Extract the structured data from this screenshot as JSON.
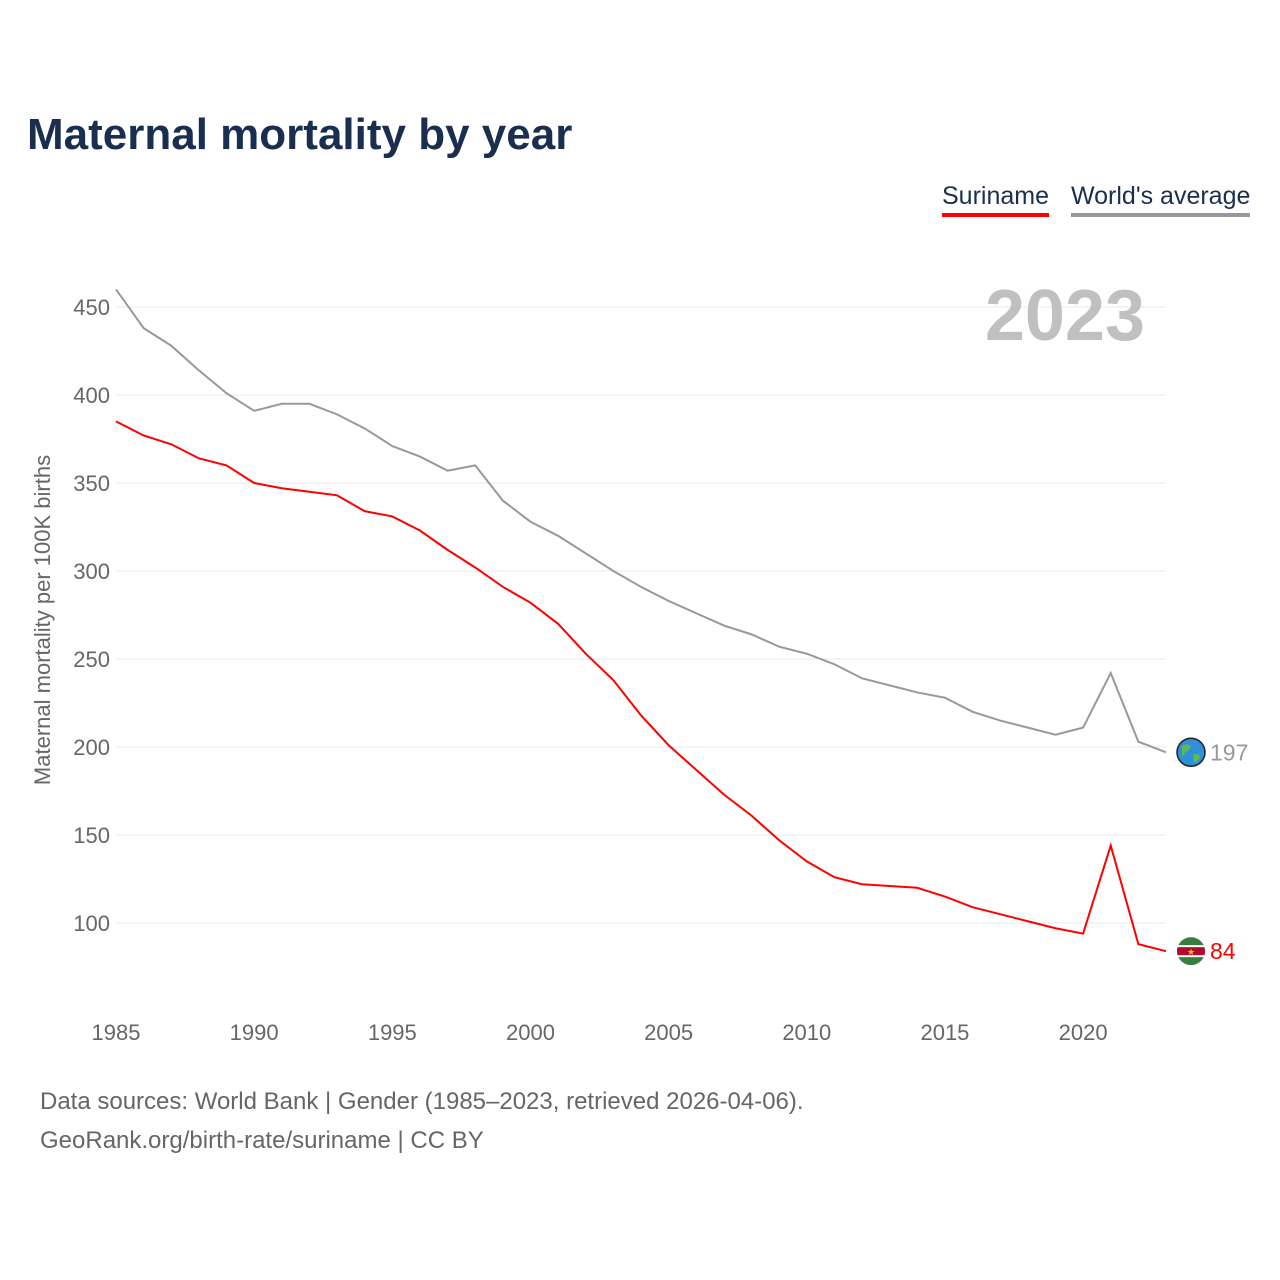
{
  "title": "Maternal mortality by year",
  "legend": [
    "Suriname",
    "World's average"
  ],
  "year_label": "2023",
  "footer": {
    "line1": "Data sources: World Bank | Gender (1985–2023, retrieved 2026-04-06).",
    "line2": "GeoRank.org/birth-rate/suriname | CC BY"
  },
  "chart_data": {
    "type": "line",
    "title": "Maternal mortality by year",
    "xlabel": "",
    "ylabel": "Maternal mortality per 100K births",
    "xlim": [
      1985,
      2023
    ],
    "ylim": [
      60,
      460
    ],
    "xticks": [
      1985,
      1990,
      1995,
      2000,
      2005,
      2010,
      2015,
      2020
    ],
    "yticks": [
      100,
      150,
      200,
      250,
      300,
      350,
      400,
      450
    ],
    "grid": true,
    "legend_position": "top-right",
    "x": [
      1985,
      1986,
      1987,
      1988,
      1989,
      1990,
      1991,
      1992,
      1993,
      1994,
      1995,
      1996,
      1997,
      1998,
      1999,
      2000,
      2001,
      2002,
      2003,
      2004,
      2005,
      2006,
      2007,
      2008,
      2009,
      2010,
      2011,
      2012,
      2013,
      2014,
      2015,
      2016,
      2017,
      2018,
      2019,
      2020,
      2021,
      2022,
      2023
    ],
    "series": [
      {
        "name": "Suriname",
        "color": "#ff0000",
        "end_label": "84",
        "values": [
          385,
          377,
          372,
          364,
          360,
          350,
          347,
          345,
          343,
          334,
          331,
          323,
          312,
          302,
          291,
          282,
          270,
          253,
          238,
          218,
          201,
          187,
          173,
          161,
          147,
          135,
          126,
          122,
          121,
          120,
          115,
          109,
          105,
          101,
          97,
          94,
          144,
          88,
          84
        ]
      },
      {
        "name": "World's average",
        "color": "#999999",
        "end_label": "197",
        "values": [
          460,
          438,
          428,
          414,
          401,
          391,
          395,
          395,
          389,
          381,
          371,
          365,
          357,
          360,
          340,
          328,
          320,
          310,
          300,
          291,
          283,
          276,
          269,
          264,
          257,
          253,
          247,
          239,
          235,
          231,
          228,
          220,
          215,
          211,
          207,
          211,
          242,
          203,
          197
        ]
      }
    ]
  }
}
